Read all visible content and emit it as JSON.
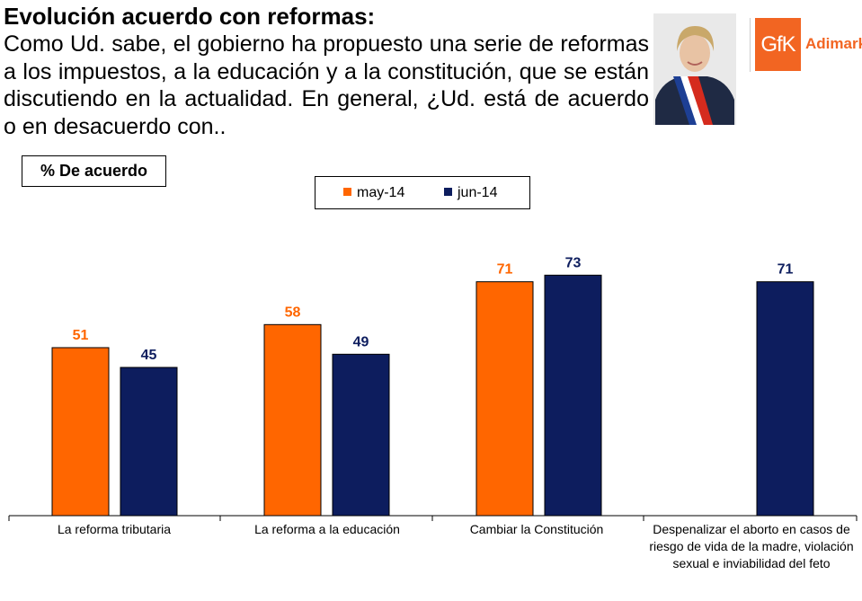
{
  "header": {
    "title": "Evolución acuerdo con reformas:",
    "question": "Como Ud. sabe, el gobierno ha propuesto una serie de reformas a los impuestos, a la educación y a la constitución, que se están discutiendo en la actualidad. En general, ¿Ud. está de acuerdo o en desacuerdo con..",
    "logo_mark": "GfK",
    "logo_text": "Adimark"
  },
  "colors": {
    "may": "#ff6600",
    "jun": "#0d1d5e",
    "brand": "#f26522"
  },
  "chart_data": {
    "type": "bar",
    "ylabel": "% De acuerdo",
    "categories": [
      "La reforma tributaria",
      "La reforma a la educación",
      "Cambiar la Constitución",
      "Despenalizar el aborto en casos de riesgo de vida de la madre, violación sexual e inviabilidad del feto"
    ],
    "series": [
      {
        "name": "may-14",
        "values": [
          51,
          58,
          71,
          null
        ]
      },
      {
        "name": "jun-14",
        "values": [
          45,
          49,
          73,
          71
        ]
      }
    ],
    "ylim": [
      0,
      100
    ],
    "grid": false,
    "legend_position": "top-center",
    "data_labels": true
  }
}
